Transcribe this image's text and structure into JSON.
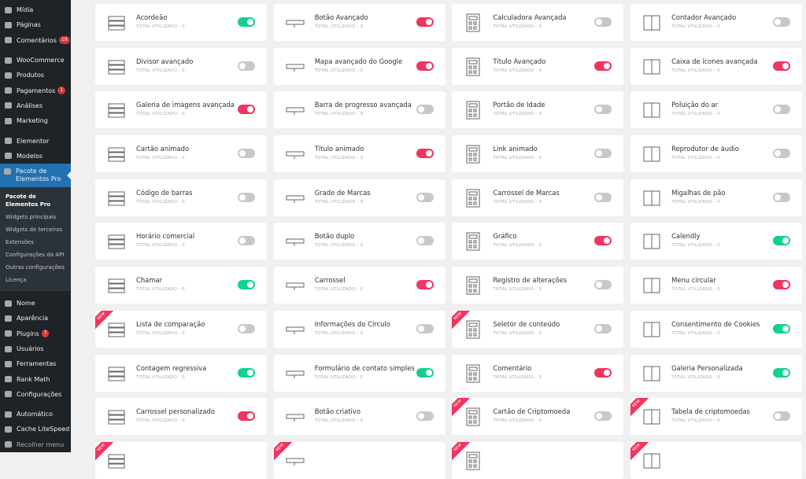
{
  "sidebar": {
    "groups": [
      [
        {
          "label": "Mídia",
          "icon": "media-icon"
        },
        {
          "label": "Páginas",
          "icon": "pages-icon"
        },
        {
          "label": "Comentários",
          "icon": "comments-icon",
          "badge": "19"
        }
      ],
      [
        {
          "label": "WooCommerce",
          "icon": "woocommerce-icon"
        },
        {
          "label": "Produtos",
          "icon": "products-icon"
        },
        {
          "label": "Pagamentos",
          "icon": "payments-icon",
          "badge": "1"
        },
        {
          "label": "Análises",
          "icon": "analytics-icon"
        },
        {
          "label": "Marketing",
          "icon": "megaphone-icon"
        }
      ],
      [
        {
          "label": "Elementor",
          "icon": "elementor-icon"
        },
        {
          "label": "Modelos",
          "icon": "folder-icon"
        },
        {
          "label": "Pacote de Elementos Pro",
          "icon": "element-pack-icon",
          "active": true
        }
      ],
      [
        {
          "label": "Nome",
          "icon": "notion-icon"
        },
        {
          "label": "Aparência",
          "icon": "brush-icon"
        },
        {
          "label": "Plugins",
          "icon": "plugin-icon",
          "badge": "7"
        },
        {
          "label": "Usuários",
          "icon": "user-icon"
        },
        {
          "label": "Ferramentas",
          "icon": "wrench-icon"
        },
        {
          "label": "Rank Math",
          "icon": "rank-math-icon"
        },
        {
          "label": "Configurações",
          "icon": "settings-icon"
        }
      ],
      [
        {
          "label": "Automático",
          "icon": "automatic-icon"
        },
        {
          "label": "Cache LiteSpeed",
          "icon": "litespeed-icon"
        },
        {
          "label": "Recolher menu",
          "icon": "collapse-icon",
          "muted": true
        }
      ]
    ],
    "submenu": [
      "Pacote de Elementos Pro",
      "Widgets principais",
      "Widgets de terceiros",
      "Extensões",
      "Configurações da API",
      "Outras configurações",
      "Licença"
    ]
  },
  "colors": {
    "on_green": "#0fd28f",
    "on_pink": "#f0355e",
    "off": "#c8c8c8",
    "new_ribbon": "#f0355e",
    "active_menu": "#2271b1"
  },
  "usage_label": "TOTAL UTILIZADO - 0",
  "new_label": "NEW",
  "widgets": [
    {
      "name": "Acordeão",
      "state": "green"
    },
    {
      "name": "Botão Avançado",
      "state": "pink"
    },
    {
      "name": "Calculadora Avançada",
      "state": "off"
    },
    {
      "name": "Contador Avançado",
      "state": "off"
    },
    {
      "name": "Divisor avançado",
      "state": "off"
    },
    {
      "name": "Mapa avançado do Google",
      "state": "pink"
    },
    {
      "name": "Título Avançado",
      "state": "pink"
    },
    {
      "name": "Caixa de ícones avançada",
      "state": "pink"
    },
    {
      "name": "Galeria de imagens avançada",
      "state": "pink"
    },
    {
      "name": "Barra de progresso avançada",
      "state": "off"
    },
    {
      "name": "Portão de Idade",
      "state": "off"
    },
    {
      "name": "Poluição do ar",
      "state": "off"
    },
    {
      "name": "Cartão animado",
      "state": "off"
    },
    {
      "name": "Título animado",
      "state": "pink"
    },
    {
      "name": "Link animado",
      "state": "off"
    },
    {
      "name": "Reprodutor de áudio",
      "state": "off"
    },
    {
      "name": "Código de barras",
      "state": "off"
    },
    {
      "name": "Grade de Marcas",
      "state": "off"
    },
    {
      "name": "Carrossel de Marcas",
      "state": "off"
    },
    {
      "name": "Migalhas de pão",
      "state": "off"
    },
    {
      "name": "Horário comercial",
      "state": "off"
    },
    {
      "name": "Botão duplo",
      "state": "off"
    },
    {
      "name": "Gráfico",
      "state": "pink"
    },
    {
      "name": "Calendly",
      "state": "green"
    },
    {
      "name": "Chamar",
      "state": "green"
    },
    {
      "name": "Carrossel",
      "state": "pink"
    },
    {
      "name": "Registro de alterações",
      "state": "off"
    },
    {
      "name": "Menu circular",
      "state": "pink"
    },
    {
      "name": "Lista de comparação",
      "state": "off",
      "new": true
    },
    {
      "name": "Informações do Círculo",
      "state": "off"
    },
    {
      "name": "Seletor de conteúdo",
      "state": "off",
      "new": true
    },
    {
      "name": "Consentimento de Cookies",
      "state": "green"
    },
    {
      "name": "Contagem regressiva",
      "state": "green"
    },
    {
      "name": "Formulário de contato simples",
      "state": "green"
    },
    {
      "name": "Comentário",
      "state": "pink"
    },
    {
      "name": "Galeria Personalizada",
      "state": "green"
    },
    {
      "name": "Carrossel personalizado",
      "state": "pink"
    },
    {
      "name": "Botão criativo",
      "state": "off"
    },
    {
      "name": "Cartão de Criptomoeda",
      "state": "off",
      "new": true
    },
    {
      "name": "Tabela de criptomoedas",
      "state": "off",
      "new": true
    },
    {
      "name": "",
      "state": "off",
      "new": true
    },
    {
      "name": "",
      "state": "off",
      "new": true
    },
    {
      "name": "",
      "state": "off",
      "new": true
    },
    {
      "name": "",
      "state": "off",
      "new": true
    }
  ]
}
